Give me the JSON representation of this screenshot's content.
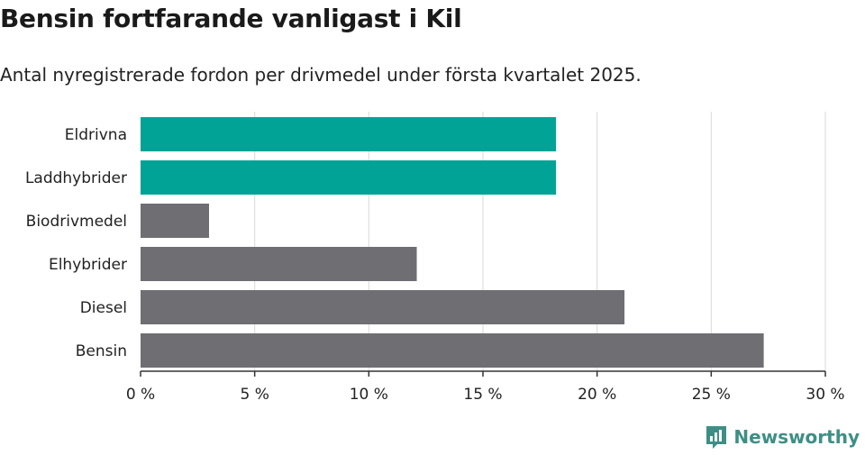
{
  "header": {
    "title": "Bensin fortfarande vanligast i Kil",
    "subtitle": "Antal nyregistrerade fordon per drivmedel under första kvartalet 2025."
  },
  "brand": {
    "name": "Newsworthy",
    "icon": "newsworthy-logo-icon",
    "color": "#3d8f85"
  },
  "chart_data": {
    "type": "bar",
    "orientation": "horizontal",
    "categories": [
      "Eldrivna",
      "Laddhybrider",
      "Biodrivmedel",
      "Elhybrider",
      "Diesel",
      "Bensin"
    ],
    "values": [
      18.2,
      18.2,
      3.0,
      12.1,
      21.2,
      27.3
    ],
    "colors": [
      "#00a396",
      "#00a396",
      "#6e6e73",
      "#6e6e73",
      "#6e6e73",
      "#6e6e73"
    ],
    "xlim": [
      0,
      30
    ],
    "xticks": [
      0,
      5,
      10,
      15,
      20,
      25,
      30
    ],
    "xtick_labels": [
      "0 %",
      "5 %",
      "10 %",
      "15 %",
      "20 %",
      "25 %",
      "30 %"
    ],
    "grid": true,
    "xlabel": "",
    "ylabel": ""
  }
}
